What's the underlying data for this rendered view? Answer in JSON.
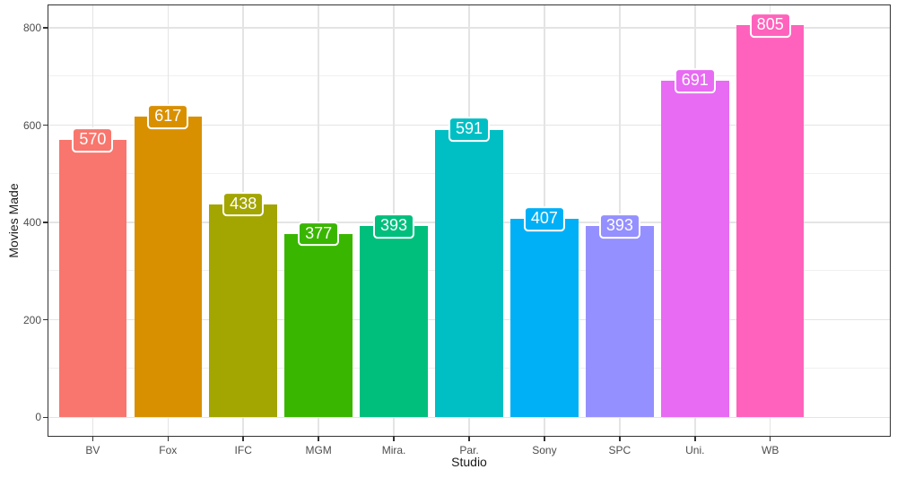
{
  "chart_data": {
    "type": "bar",
    "title": "",
    "xlabel": "Studio",
    "ylabel": "Movies Made",
    "categories": [
      "BV",
      "Fox",
      "IFC",
      "MGM",
      "Mira.",
      "Par.",
      "Sony",
      "SPC",
      "Uni.",
      "WB"
    ],
    "values": [
      570,
      617,
      438,
      377,
      393,
      591,
      407,
      393,
      691,
      805
    ],
    "bar_labels": [
      "570",
      "617",
      "438",
      "377",
      "393",
      "591",
      "407",
      "393",
      "691",
      "805"
    ],
    "bar_colors": [
      "#F8766D",
      "#D89000",
      "#A3A500",
      "#39B600",
      "#00BF7D",
      "#00BFC4",
      "#00B0F6",
      "#9590FF",
      "#E76BF3",
      "#FF62BC"
    ],
    "y_ticks": [
      0,
      200,
      400,
      600,
      800
    ],
    "y_tick_labels": [
      "0",
      "200",
      "400",
      "600",
      "800"
    ],
    "y_minor_ticks": [
      100,
      300,
      500,
      700
    ],
    "ylim": [
      -40,
      848
    ],
    "bar_width_fraction": 0.9,
    "category_edge_expansion": 0.6,
    "grid": "horizontal major+minor, vertical major at category centers",
    "legend": "none",
    "style": {
      "background": "#ffffff",
      "panel_border": "#333333",
      "grid_major": "#e4e4e4",
      "grid_minor": "#f0f0f0",
      "tick_color": "#333333",
      "tick_label_color": "#4d4d4d",
      "axis_title_color": "#1a1a1a",
      "label_text_color": "#ffffff",
      "label_border_color": "#ffffff"
    }
  }
}
